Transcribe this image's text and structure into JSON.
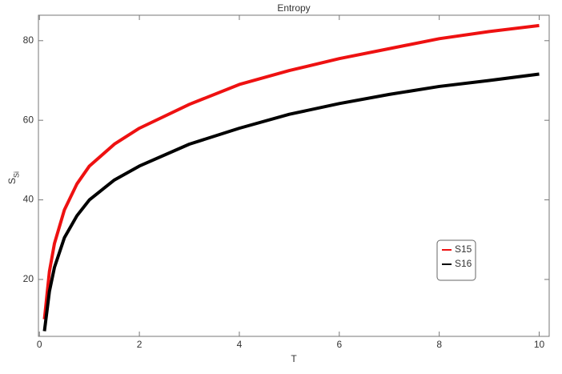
{
  "chart_data": {
    "type": "line",
    "title": "Entropy",
    "xlabel": "T",
    "ylabel": {
      "main": "S",
      "sub": "Si"
    },
    "x": [
      0.1,
      0.2,
      0.3,
      0.5,
      0.75,
      1,
      1.5,
      2,
      3,
      4,
      5,
      6,
      7,
      8,
      9,
      10
    ],
    "series": [
      {
        "name": "S15",
        "color": "#ee1111",
        "values": [
          10,
          22,
          29,
          37.5,
          44,
          48.5,
          54,
          58,
          64,
          69,
          72.5,
          75.5,
          78,
          80.5,
          82.3,
          83.8
        ]
      },
      {
        "name": "S16",
        "color": "#000000",
        "values": [
          7,
          17,
          23,
          30.5,
          36,
          40,
          45,
          48.5,
          54,
          58,
          61.5,
          64.2,
          66.5,
          68.5,
          70,
          71.6
        ]
      }
    ],
    "xlim": [
      -0.02,
      10.2
    ],
    "ylim": [
      5.7,
      86.4
    ],
    "xticks": [
      0,
      2,
      4,
      6,
      8,
      10
    ],
    "yticks": [
      20,
      40,
      60,
      80
    ],
    "grid": false,
    "legend_position": "lower right"
  }
}
